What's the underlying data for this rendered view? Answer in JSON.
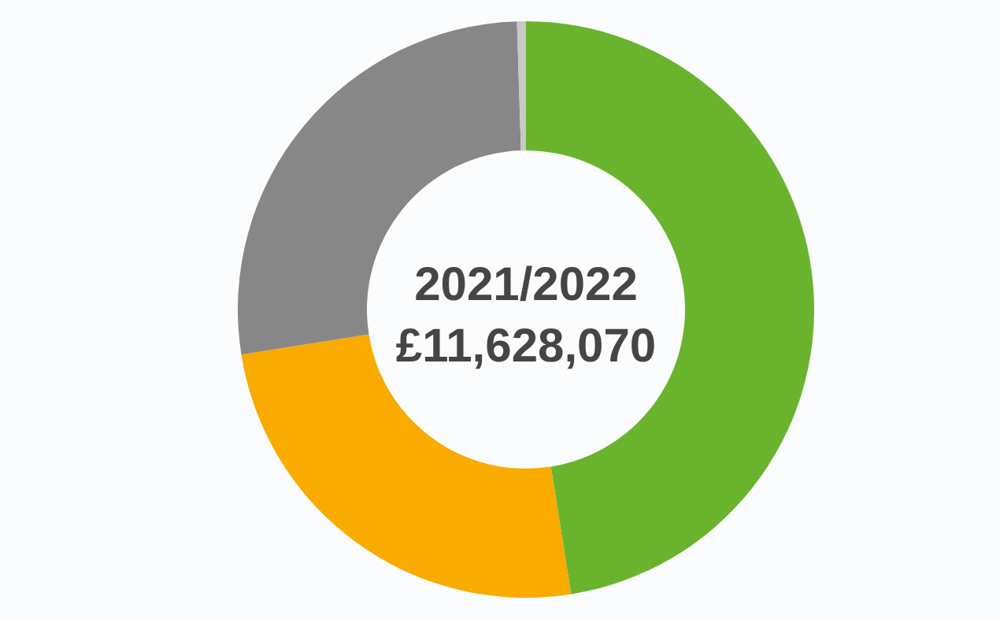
{
  "chart_data": {
    "type": "donut",
    "title": "2021/2022",
    "subtitle": "£11,628,070",
    "categories": [
      null,
      null,
      null,
      null
    ],
    "values": [
      47.5,
      25,
      27,
      0.5
    ],
    "colors": [
      "#6ab42d",
      "#f9ab00",
      "#878787",
      "#c8c8c8"
    ]
  }
}
